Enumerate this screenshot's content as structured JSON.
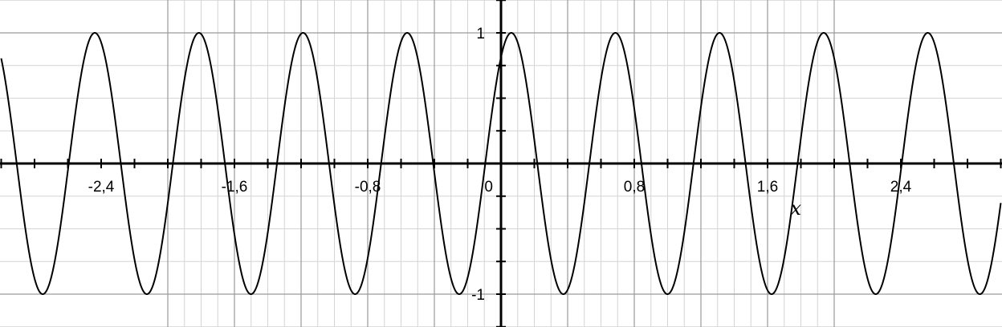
{
  "chart_data": {
    "type": "line",
    "title": "",
    "xlabel": "x",
    "ylabel": "",
    "xlim": [
      -3.0,
      3.0
    ],
    "ylim": [
      -1.25,
      1.25
    ],
    "grid": true,
    "x_ticks": [
      {
        "value": -2.4,
        "label": "-2,4"
      },
      {
        "value": -1.6,
        "label": "-1,6"
      },
      {
        "value": -0.8,
        "label": "-0,8"
      },
      {
        "value": 0,
        "label": "0"
      },
      {
        "value": 0.8,
        "label": "0,8"
      },
      {
        "value": 1.6,
        "label": "1,6"
      },
      {
        "value": 2.4,
        "label": "2,4"
      }
    ],
    "y_ticks": [
      {
        "value": 1,
        "label": "1"
      },
      {
        "value": -1,
        "label": "-1"
      }
    ],
    "series": [
      {
        "function": "y = sin(2·pi·x/0.625 + 0.95)",
        "amplitude": 1,
        "period": 0.625,
        "phase": 0.95,
        "color": "#000000"
      }
    ]
  }
}
